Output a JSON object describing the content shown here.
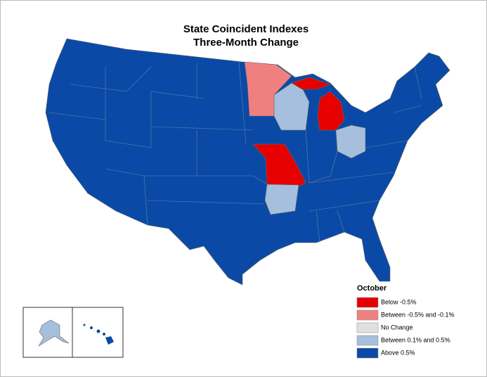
{
  "title": [
    "State Coincident Indexes",
    "Three-Month Change"
  ],
  "legend": {
    "title": "October",
    "items": [
      {
        "label": "Below -0.5%",
        "color": "#e60000"
      },
      {
        "label": "Between -0.5% and -0.1%",
        "color": "#f08080"
      },
      {
        "label": "No Change",
        "color": "#e0e0e0"
      },
      {
        "label": "Between 0.1% and 0.5%",
        "color": "#a5bfdc"
      },
      {
        "label": "Above 0.5%",
        "color": "#0a4aa6"
      }
    ]
  }
}
